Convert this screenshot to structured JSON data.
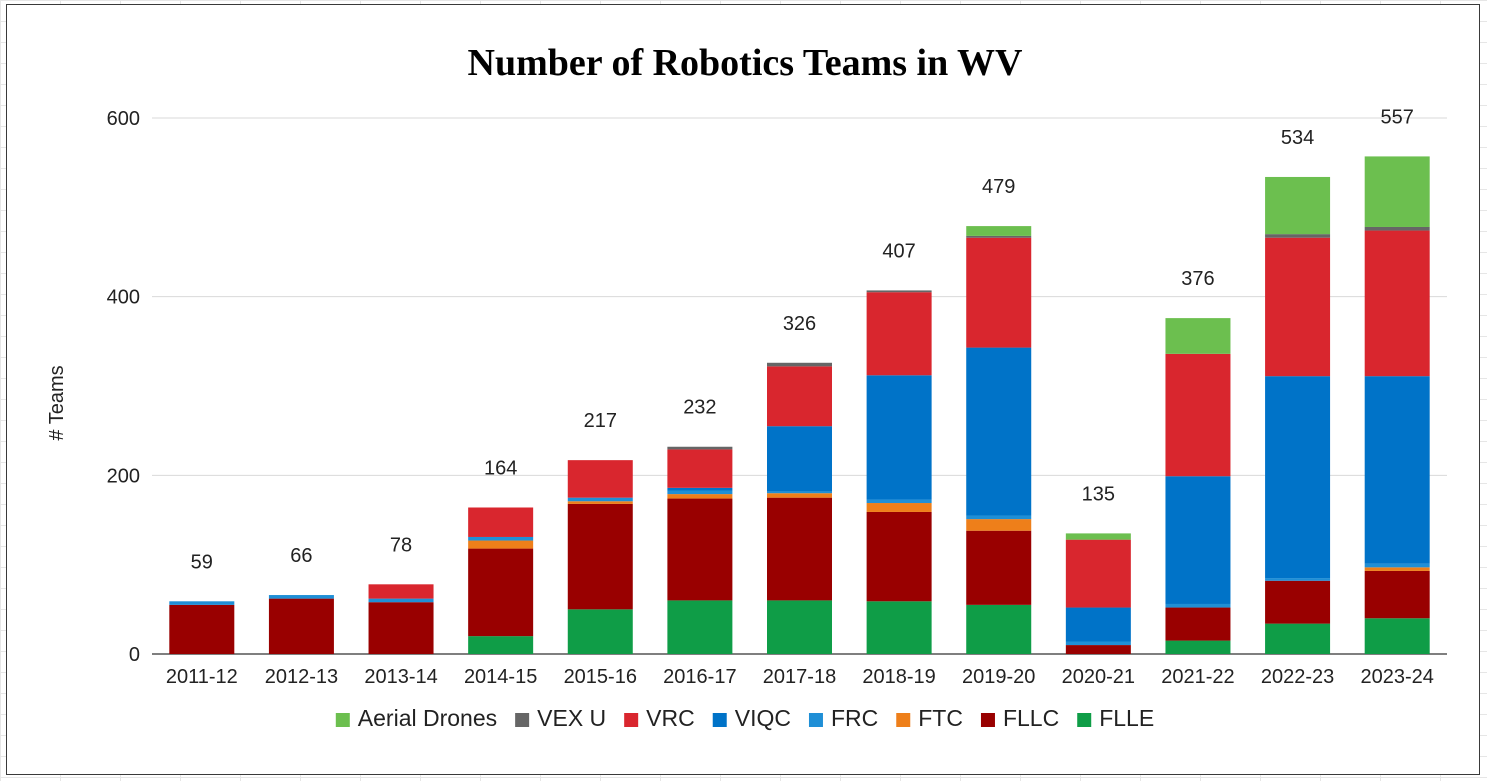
{
  "chart_data": {
    "type": "bar",
    "stacked": true,
    "title": "Number of Robotics Teams in WV",
    "xlabel": "",
    "ylabel": "# Teams",
    "ylim": [
      0,
      600
    ],
    "yticks": [
      0,
      200,
      400,
      600
    ],
    "grid": true,
    "legend_position": "bottom",
    "categories": [
      "2011-12",
      "2012-13",
      "2013-14",
      "2014-15",
      "2015-16",
      "2016-17",
      "2017-18",
      "2018-19",
      "2019-20",
      "2020-21",
      "2021-22",
      "2022-23",
      "2023-24"
    ],
    "totals": [
      59,
      66,
      78,
      164,
      217,
      232,
      326,
      407,
      479,
      135,
      376,
      534,
      557
    ],
    "series": [
      {
        "name": "FLLE",
        "color": "#0f9d47",
        "values": [
          0,
          0,
          0,
          20,
          50,
          60,
          60,
          59,
          55,
          0,
          15,
          34,
          40
        ]
      },
      {
        "name": "FLLC",
        "color": "#990000",
        "values": [
          55,
          62,
          58,
          98,
          118,
          114,
          115,
          100,
          83,
          10,
          37,
          48,
          53
        ]
      },
      {
        "name": "FTC",
        "color": "#ee7f1a",
        "values": [
          0,
          0,
          0,
          9,
          3,
          5,
          5,
          10,
          13,
          0,
          0,
          0,
          4
        ]
      },
      {
        "name": "FRC",
        "color": "#1f8fd6",
        "values": [
          4,
          4,
          4,
          4,
          4,
          4,
          2,
          4,
          4,
          4,
          4,
          3,
          4
        ]
      },
      {
        "name": "VIQC",
        "color": "#0073c8",
        "values": [
          0,
          0,
          0,
          0,
          0,
          3,
          73,
          139,
          188,
          38,
          143,
          226,
          210
        ]
      },
      {
        "name": "VRC",
        "color": "#d9262e",
        "values": [
          0,
          0,
          16,
          33,
          42,
          43,
          67,
          93,
          123,
          76,
          137,
          155,
          163
        ]
      },
      {
        "name": "VEX U",
        "color": "#666666",
        "values": [
          0,
          0,
          0,
          0,
          0,
          3,
          4,
          2,
          2,
          0,
          0,
          4,
          4
        ]
      },
      {
        "name": "Aerial Drones",
        "color": "#6cbf4f",
        "values": [
          0,
          0,
          0,
          0,
          0,
          0,
          0,
          0,
          11,
          7,
          40,
          64,
          79
        ]
      }
    ],
    "legend_order": [
      "Aerial Drones",
      "VEX U",
      "VRC",
      "VIQC",
      "FRC",
      "FTC",
      "FLLC",
      "FLLE"
    ]
  },
  "colors": {
    "gridline": "#d9d9d9",
    "baseline": "#333333",
    "frame_border": "#3a3a3a"
  }
}
